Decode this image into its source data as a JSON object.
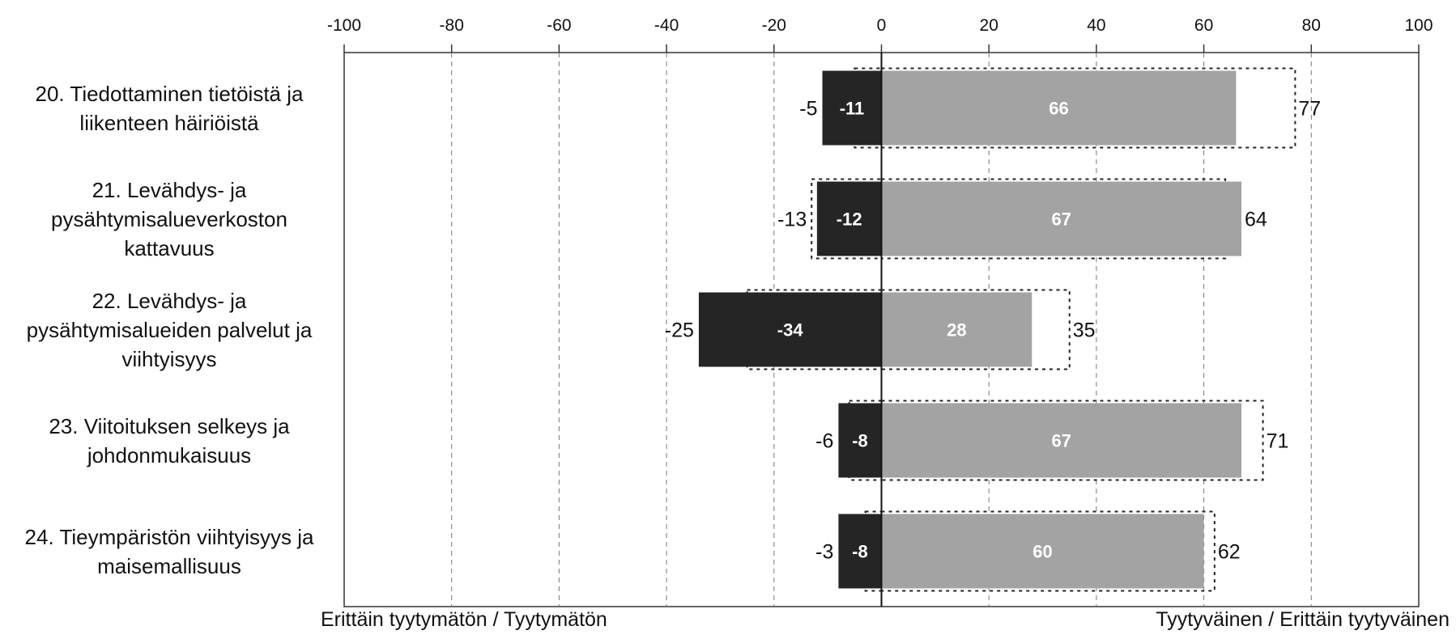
{
  "chart_data": {
    "type": "bar",
    "orientation": "horizontal",
    "xlim": [
      -100,
      100
    ],
    "xticks": [
      "-100",
      "-80",
      "-60",
      "-40",
      "-20",
      "0",
      "20",
      "40",
      "60",
      "80",
      "100"
    ],
    "grid": "vertical dashed",
    "categories": [
      "20. Tiedottaminen tietöistä ja\nliikenteen häiriöistä",
      "21. Levähdys- ja\npysähtymisalueverkoston\nkattavuus",
      "22. Levähdys- ja\npysähtymisalueiden palvelut ja\nviihtyisyys",
      "23. Viitoituksen selkeys ja\njohdonmukaisuus",
      "24. Tieympäristön viihtyisyys ja\nmaisemallisuus"
    ],
    "series": [
      {
        "style": "solid dark",
        "values": [
          -11,
          -12,
          -34,
          -8,
          -8
        ]
      },
      {
        "style": "solid gray",
        "values": [
          66,
          67,
          28,
          67,
          60
        ]
      },
      {
        "style": "dotted outline",
        "values": [
          -5,
          -13,
          -25,
          -6,
          -3
        ]
      },
      {
        "style": "dotted outline",
        "values": [
          77,
          64,
          35,
          71,
          62
        ]
      }
    ],
    "xlabel_left": "Erittäin tyytymätön / Tyytymätön",
    "xlabel_right": "Tyytyväinen / Erittäin tyytyväinen",
    "colors": {
      "negative": "#252525",
      "positive": "#a3a3a3",
      "outline": "#222222"
    }
  }
}
